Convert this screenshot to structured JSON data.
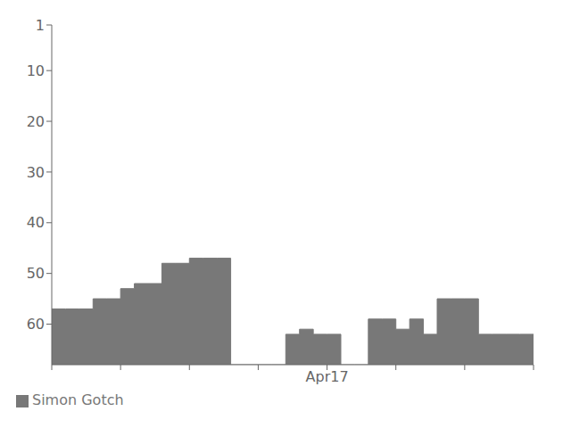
{
  "chart_data": {
    "type": "area",
    "line_style": "step",
    "x": [
      0,
      1,
      2,
      3,
      4,
      5,
      6,
      7,
      8,
      9,
      10,
      11,
      12,
      13,
      14,
      15,
      16,
      17,
      18,
      19,
      20,
      21,
      22,
      23,
      24,
      25,
      26,
      27,
      28,
      29,
      30,
      31,
      32,
      33,
      34,
      35
    ],
    "series": [
      {
        "name": "Simon Gotch",
        "color": "#787878",
        "values": [
          57,
          57,
          57,
          55,
          55,
          53,
          52,
          52,
          48,
          48,
          47,
          47,
          47,
          68,
          68,
          68,
          68,
          62,
          61,
          62,
          62,
          68,
          68,
          59,
          59,
          61,
          59,
          62,
          55,
          55,
          55,
          62,
          62,
          62,
          62,
          62
        ]
      }
    ],
    "xlim": [
      0,
      35
    ],
    "xticks": [
      {
        "value": 0,
        "label": null
      },
      {
        "value": 5,
        "label": null
      },
      {
        "value": 10,
        "label": null
      },
      {
        "value": 15,
        "label": null
      },
      {
        "value": 20,
        "label": "Apr17"
      },
      {
        "value": 25,
        "label": null
      },
      {
        "value": 30,
        "label": null
      },
      {
        "value": 35,
        "label": null
      }
    ],
    "ylim": [
      68,
      1
    ],
    "yticks": [
      1,
      10,
      20,
      30,
      40,
      50,
      60
    ],
    "grid": false,
    "legend": "lower left"
  }
}
